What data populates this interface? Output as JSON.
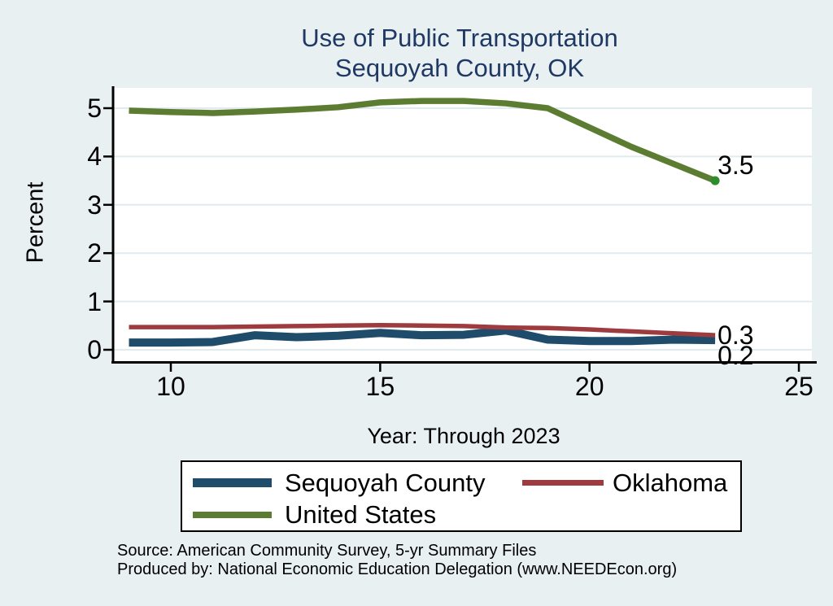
{
  "title": {
    "line1": "Use of Public Transportation",
    "line2": "Sequoyah County, OK"
  },
  "chart_data": {
    "type": "line",
    "title": "Use of Public Transportation Sequoyah County, OK",
    "xlabel": "Year: Through 2023",
    "ylabel": "Percent",
    "x": [
      2009,
      2010,
      2011,
      2012,
      2013,
      2014,
      2015,
      2016,
      2017,
      2018,
      2019,
      2020,
      2021,
      2022,
      2023
    ],
    "x_tick_labels": [
      "10",
      "15",
      "20",
      "25"
    ],
    "y_tick_labels": [
      "0",
      "1",
      "2",
      "3",
      "4",
      "5"
    ],
    "xlim": [
      9,
      25
    ],
    "ylim": [
      0,
      5.65
    ],
    "grid": true,
    "legend_position": "bottom",
    "series": [
      {
        "name": "Sequoyah County",
        "color": "#1f4c6b",
        "values": [
          0.15,
          0.15,
          0.16,
          0.3,
          0.26,
          0.29,
          0.35,
          0.3,
          0.31,
          0.4,
          0.21,
          0.18,
          0.18,
          0.21,
          0.2
        ],
        "end_label": "0.2",
        "end_marker": false
      },
      {
        "name": "Oklahoma",
        "color": "#9e3b3e",
        "values": [
          0.47,
          0.47,
          0.47,
          0.48,
          0.49,
          0.5,
          0.51,
          0.5,
          0.49,
          0.46,
          0.45,
          0.42,
          0.38,
          0.34,
          0.3
        ],
        "end_label": "0.3",
        "end_marker": false
      },
      {
        "name": "United States",
        "color": "#5c7c31",
        "values": [
          4.95,
          4.92,
          4.9,
          4.93,
          4.97,
          5.02,
          5.12,
          5.15,
          5.15,
          5.1,
          5.0,
          4.6,
          4.2,
          3.85,
          3.5
        ],
        "end_label": "3.5",
        "end_marker": true
      }
    ]
  },
  "colors": {
    "background": "#e8f0f2",
    "plot_background": "#ffffff",
    "gridline": "#e0ebef",
    "axis": "#000000",
    "title": "#1f3864",
    "end_marker_green": "#2e8b2e"
  },
  "footer": {
    "line1": "Source: American Community Survey, 5-yr Summary Files",
    "line2": "Produced by: National Economic Education Delegation (www.NEEDEcon.org)"
  }
}
